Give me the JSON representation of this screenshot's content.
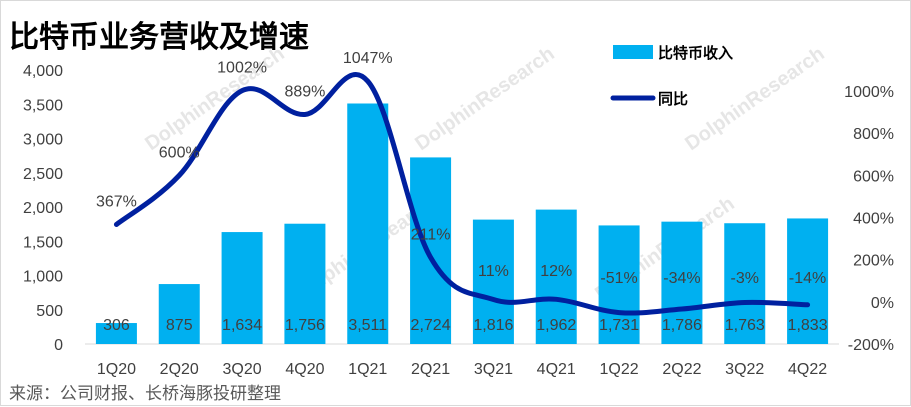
{
  "colors": {
    "bar": "#00b0f0",
    "line": "#00209f",
    "text": "#404040"
  },
  "chart_data": {
    "type": "bar",
    "title": "比特币业务营收及增速",
    "source": "来源：公司财报、长桥海豚投研整理",
    "watermark": "DolphinResearch",
    "categories": [
      "1Q20",
      "2Q20",
      "3Q20",
      "4Q20",
      "1Q21",
      "2Q21",
      "3Q21",
      "4Q21",
      "1Q22",
      "2Q22",
      "3Q22",
      "4Q22"
    ],
    "left_axis": {
      "ylim": [
        0,
        4000
      ],
      "ticks": [
        "0",
        "500",
        "1,000",
        "1,500",
        "2,000",
        "2,500",
        "3,000",
        "3,500",
        "4,000"
      ]
    },
    "right_axis": {
      "ylim": [
        -200,
        1100
      ],
      "ticks": [
        "-200%",
        "0%",
        "200%",
        "400%",
        "600%",
        "800%",
        "1000%"
      ]
    },
    "grid": false,
    "legend_position": "top-right",
    "series": [
      {
        "name": "比特币收入",
        "type": "bar",
        "axis": "left",
        "values": [
          306,
          875,
          1634,
          1756,
          3511,
          2724,
          1816,
          1962,
          1731,
          1786,
          1763,
          1833
        ],
        "labels": [
          "306",
          "875",
          "1,634",
          "1,756",
          "3,511",
          "2,724",
          "1,816",
          "1,962",
          "1,731",
          "1,786",
          "1,763",
          "1,833"
        ]
      },
      {
        "name": "同比",
        "type": "line",
        "axis": "right",
        "values": [
          367,
          600,
          1002,
          889,
          1047,
          211,
          11,
          12,
          -51,
          -34,
          -3,
          -14
        ],
        "labels": [
          "367%",
          "600%",
          "1002%",
          "889%",
          "1047%",
          "211%",
          "11%",
          "12%",
          "-51%",
          "-34%",
          "-3%",
          "-14%"
        ]
      }
    ]
  }
}
